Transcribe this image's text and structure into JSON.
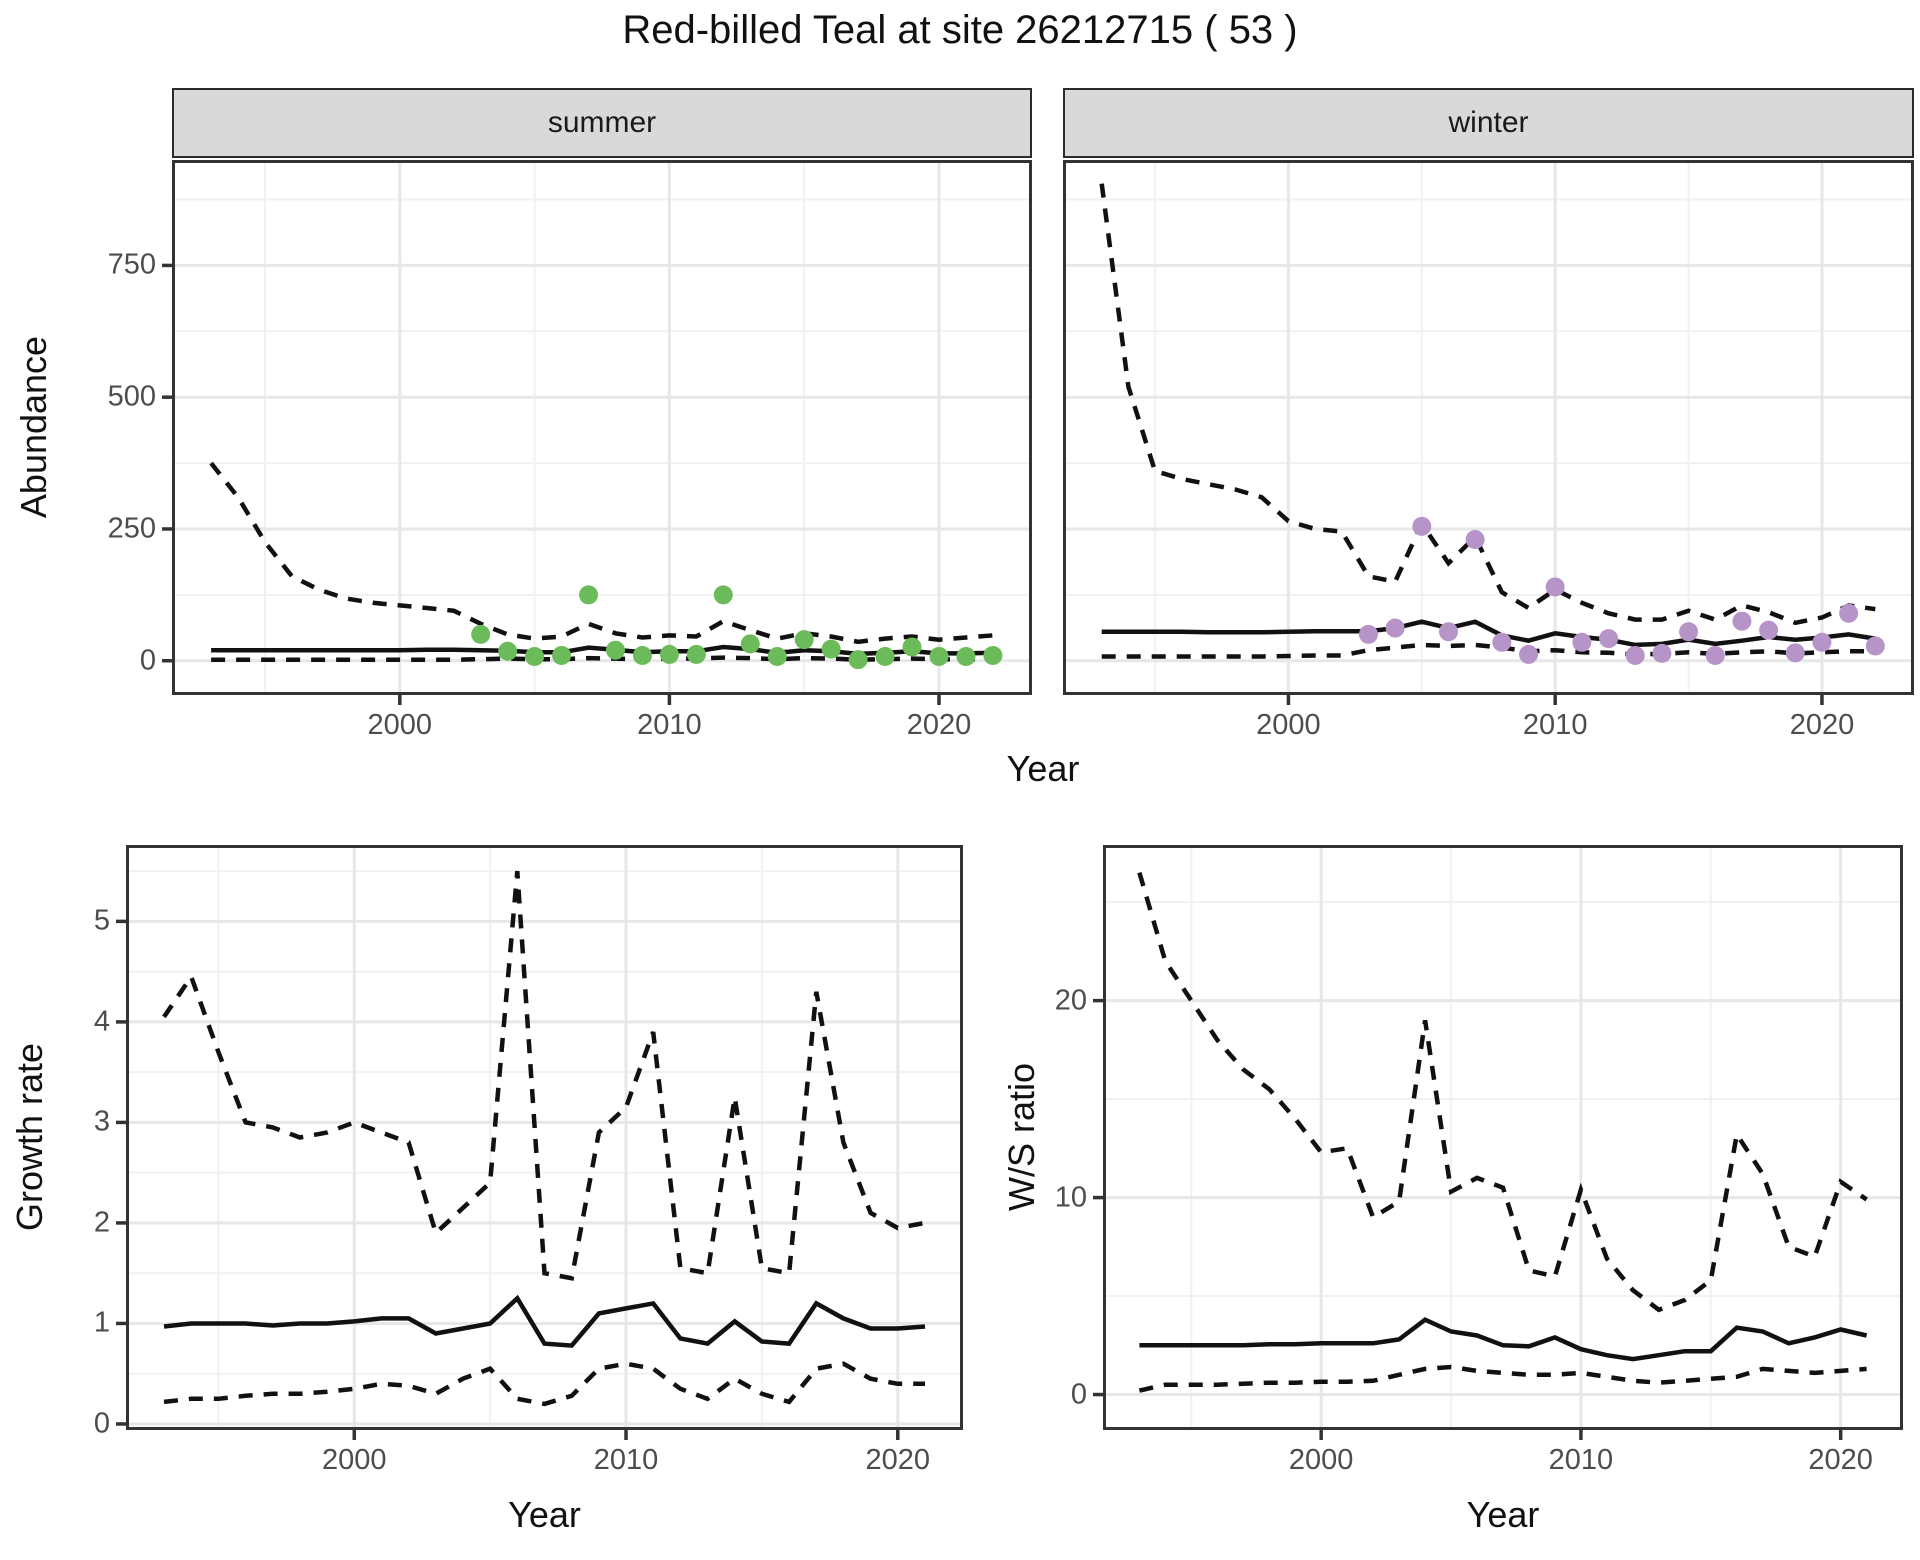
{
  "figure": {
    "title": "Red-billed Teal at site 26212715 ( 53 )"
  },
  "colors": {
    "summer_points": "#6cbb5a",
    "winter_points": "#b794c8",
    "line": "#111111",
    "strip_background": "#d9d9d9",
    "panel_border": "#333333",
    "grid_major": "#e7e7e7",
    "grid_minor": "#f1f1f1",
    "axis_text": "#4d4d4d"
  },
  "chart_data": [
    {
      "id": "summer",
      "type": "line",
      "facet_label": "summer",
      "ylabel": "Abundance",
      "xlabel": "Year",
      "xlim": [
        1991.55,
        2023.45
      ],
      "ylim": [
        -65,
        950
      ],
      "x_ticks": [
        2000,
        2010,
        2020
      ],
      "y_ticks": [
        0,
        250,
        500,
        750
      ],
      "grid": true,
      "legend": "none",
      "series": [
        {
          "name": "upper-ci",
          "style": "dashed",
          "x": [
            1993,
            1994,
            1995,
            1996,
            1997,
            1998,
            1999,
            2000,
            2001,
            2002,
            2003,
            2004,
            2005,
            2006,
            2007,
            2008,
            2009,
            2010,
            2011,
            2012,
            2013,
            2014,
            2015,
            2016,
            2017,
            2018,
            2019,
            2020,
            2021,
            2022
          ],
          "values": [
            375,
            310,
            225,
            160,
            135,
            118,
            110,
            105,
            100,
            95,
            70,
            50,
            42,
            46,
            70,
            52,
            44,
            48,
            46,
            75,
            58,
            42,
            52,
            46,
            36,
            42,
            46,
            40,
            44,
            48
          ]
        },
        {
          "name": "median",
          "style": "solid",
          "x": [
            1993,
            1994,
            1995,
            1996,
            1997,
            1998,
            1999,
            2000,
            2001,
            2002,
            2003,
            2004,
            2005,
            2006,
            2007,
            2008,
            2009,
            2010,
            2011,
            2012,
            2013,
            2014,
            2015,
            2016,
            2017,
            2018,
            2019,
            2020,
            2021,
            2022
          ],
          "values": [
            20,
            20,
            20,
            20,
            20,
            20,
            20,
            20,
            21,
            21,
            20,
            19,
            16,
            16,
            25,
            21,
            16,
            18,
            18,
            26,
            22,
            15,
            20,
            18,
            13,
            15,
            18,
            14,
            14,
            15
          ]
        },
        {
          "name": "lower-ci",
          "style": "dashed",
          "x": [
            1993,
            1994,
            1995,
            1996,
            1997,
            1998,
            1999,
            2000,
            2001,
            2002,
            2003,
            2004,
            2005,
            2006,
            2007,
            2008,
            2009,
            2010,
            2011,
            2012,
            2013,
            2014,
            2015,
            2016,
            2017,
            2018,
            2019,
            2020,
            2021,
            2022
          ],
          "values": [
            2,
            2,
            2,
            2,
            2,
            2,
            2,
            2,
            2,
            2,
            3,
            4,
            3,
            3,
            5,
            4,
            3,
            4,
            4,
            6,
            5,
            3,
            5,
            4,
            2,
            3,
            4,
            3,
            3,
            3
          ]
        },
        {
          "name": "observed-counts",
          "style": "points",
          "color": "#6cbb5a",
          "x": [
            2003,
            2004,
            2005,
            2006,
            2007,
            2008,
            2009,
            2010,
            2011,
            2012,
            2013,
            2014,
            2015,
            2016,
            2017,
            2018,
            2019,
            2020,
            2021,
            2022
          ],
          "values": [
            50,
            18,
            8,
            10,
            125,
            20,
            10,
            12,
            12,
            125,
            32,
            8,
            40,
            22,
            2,
            8,
            26,
            8,
            8,
            10
          ]
        }
      ]
    },
    {
      "id": "winter",
      "type": "line",
      "facet_label": "winter",
      "ylabel": "Abundance",
      "xlabel": "Year",
      "xlim": [
        1991.55,
        2023.45
      ],
      "ylim": [
        -65,
        950
      ],
      "x_ticks": [
        2000,
        2010,
        2020
      ],
      "y_ticks": [
        0,
        250,
        500,
        750
      ],
      "y_tick_labels_shown": false,
      "grid": true,
      "legend": "none",
      "series": [
        {
          "name": "upper-ci",
          "style": "dashed",
          "x": [
            1993,
            1994,
            1995,
            1996,
            1997,
            1998,
            1999,
            2000,
            2001,
            2002,
            2003,
            2004,
            2005,
            2006,
            2007,
            2008,
            2009,
            2010,
            2011,
            2012,
            2013,
            2014,
            2015,
            2016,
            2017,
            2018,
            2019,
            2020,
            2021,
            2022
          ],
          "values": [
            905,
            520,
            360,
            345,
            335,
            325,
            310,
            265,
            250,
            245,
            160,
            150,
            260,
            185,
            235,
            130,
            100,
            135,
            110,
            90,
            78,
            78,
            95,
            78,
            105,
            92,
            72,
            82,
            105,
            98
          ]
        },
        {
          "name": "median",
          "style": "solid",
          "x": [
            1993,
            1994,
            1995,
            1996,
            1997,
            1998,
            1999,
            2000,
            2001,
            2002,
            2003,
            2004,
            2005,
            2006,
            2007,
            2008,
            2009,
            2010,
            2011,
            2012,
            2013,
            2014,
            2015,
            2016,
            2017,
            2018,
            2019,
            2020,
            2021,
            2022
          ],
          "values": [
            55,
            55,
            55,
            55,
            54,
            54,
            54,
            55,
            56,
            56,
            56,
            62,
            74,
            62,
            74,
            48,
            38,
            52,
            45,
            40,
            30,
            32,
            40,
            32,
            38,
            45,
            40,
            44,
            50,
            42
          ]
        },
        {
          "name": "lower-ci",
          "style": "dashed",
          "x": [
            1993,
            1994,
            1995,
            1996,
            1997,
            1998,
            1999,
            2000,
            2001,
            2002,
            2003,
            2004,
            2005,
            2006,
            2007,
            2008,
            2009,
            2010,
            2011,
            2012,
            2013,
            2014,
            2015,
            2016,
            2017,
            2018,
            2019,
            2020,
            2021,
            2022
          ],
          "values": [
            8,
            8,
            8,
            8,
            8,
            8,
            8,
            9,
            10,
            10,
            20,
            25,
            30,
            28,
            30,
            25,
            18,
            20,
            16,
            15,
            12,
            13,
            16,
            13,
            16,
            18,
            14,
            16,
            18,
            18
          ]
        },
        {
          "name": "observed-counts",
          "style": "points",
          "color": "#b794c8",
          "x": [
            2003,
            2004,
            2005,
            2006,
            2007,
            2008,
            2009,
            2010,
            2011,
            2012,
            2013,
            2014,
            2015,
            2016,
            2017,
            2018,
            2019,
            2020,
            2021,
            2022
          ],
          "values": [
            50,
            62,
            255,
            55,
            230,
            35,
            12,
            140,
            35,
            42,
            10,
            14,
            55,
            10,
            75,
            58,
            15,
            35,
            90,
            28
          ]
        }
      ]
    },
    {
      "id": "growth",
      "type": "line",
      "facet_label": "",
      "ylabel": "Growth rate",
      "xlabel": "Year",
      "xlim": [
        1991.6,
        2022.4
      ],
      "ylim": [
        -0.06,
        5.76
      ],
      "x_ticks": [
        2000,
        2010,
        2020
      ],
      "y_ticks": [
        0,
        1,
        2,
        3,
        4,
        5
      ],
      "grid": true,
      "legend": "none",
      "series": [
        {
          "name": "upper-ci",
          "style": "dashed",
          "x": [
            1993,
            1994,
            1995,
            1996,
            1997,
            1998,
            1999,
            2000,
            2001,
            2002,
            2003,
            2004,
            2005,
            2006,
            2007,
            2008,
            2009,
            2010,
            2011,
            2012,
            2013,
            2014,
            2015,
            2016,
            2017,
            2018,
            2019,
            2020,
            2021
          ],
          "values": [
            4.05,
            4.45,
            3.7,
            3.0,
            2.95,
            2.85,
            2.9,
            3.0,
            2.9,
            2.8,
            1.9,
            2.15,
            2.4,
            5.5,
            1.5,
            1.45,
            2.9,
            3.15,
            3.9,
            1.55,
            1.5,
            3.25,
            1.55,
            1.5,
            4.3,
            2.8,
            2.1,
            1.95,
            2.0
          ]
        },
        {
          "name": "median",
          "style": "solid",
          "x": [
            1993,
            1994,
            1995,
            1996,
            1997,
            1998,
            1999,
            2000,
            2001,
            2002,
            2003,
            2004,
            2005,
            2006,
            2007,
            2008,
            2009,
            2010,
            2011,
            2012,
            2013,
            2014,
            2015,
            2016,
            2017,
            2018,
            2019,
            2020,
            2021
          ],
          "values": [
            0.97,
            1.0,
            1.0,
            1.0,
            0.98,
            1.0,
            1.0,
            1.02,
            1.05,
            1.05,
            0.9,
            0.95,
            1.0,
            1.25,
            0.8,
            0.78,
            1.1,
            1.15,
            1.2,
            0.85,
            0.8,
            1.02,
            0.82,
            0.8,
            1.2,
            1.05,
            0.95,
            0.95,
            0.97
          ]
        },
        {
          "name": "lower-ci",
          "style": "dashed",
          "x": [
            1993,
            1994,
            1995,
            1996,
            1997,
            1998,
            1999,
            2000,
            2001,
            2002,
            2003,
            2004,
            2005,
            2006,
            2007,
            2008,
            2009,
            2010,
            2011,
            2012,
            2013,
            2014,
            2015,
            2016,
            2017,
            2018,
            2019,
            2020,
            2021
          ],
          "values": [
            0.22,
            0.25,
            0.25,
            0.28,
            0.3,
            0.3,
            0.32,
            0.35,
            0.4,
            0.38,
            0.3,
            0.45,
            0.55,
            0.25,
            0.2,
            0.28,
            0.55,
            0.6,
            0.55,
            0.35,
            0.25,
            0.45,
            0.3,
            0.22,
            0.55,
            0.6,
            0.45,
            0.4,
            0.4
          ]
        }
      ]
    },
    {
      "id": "wsratio",
      "type": "line",
      "facet_label": "",
      "ylabel": "W/S ratio",
      "xlabel": "Year",
      "xlim": [
        1991.6,
        2022.4
      ],
      "ylim": [
        -1.8,
        27.9
      ],
      "x_ticks": [
        2000,
        2010,
        2020
      ],
      "y_ticks": [
        0,
        10,
        20
      ],
      "grid": true,
      "legend": "none",
      "series": [
        {
          "name": "upper-ci",
          "style": "dashed",
          "x": [
            1993,
            1994,
            1995,
            1996,
            1997,
            1998,
            1999,
            2000,
            2001,
            2002,
            2003,
            2004,
            2005,
            2006,
            2007,
            2008,
            2009,
            2010,
            2011,
            2012,
            2013,
            2014,
            2015,
            2016,
            2017,
            2018,
            2019,
            2020,
            2021
          ],
          "values": [
            26.5,
            22,
            20,
            18,
            16.5,
            15.5,
            14,
            12.3,
            12.5,
            9,
            9.8,
            19,
            10.3,
            11,
            10.5,
            6.3,
            6,
            10.4,
            6.9,
            5.3,
            4.3,
            4.8,
            5.8,
            13.2,
            11.2,
            7.5,
            7,
            10.8,
            9.9
          ]
        },
        {
          "name": "median",
          "style": "solid",
          "x": [
            1993,
            1994,
            1995,
            1996,
            1997,
            1998,
            1999,
            2000,
            2001,
            2002,
            2003,
            2004,
            2005,
            2006,
            2007,
            2008,
            2009,
            2010,
            2011,
            2012,
            2013,
            2014,
            2015,
            2016,
            2017,
            2018,
            2019,
            2020,
            2021
          ],
          "values": [
            2.5,
            2.5,
            2.5,
            2.5,
            2.5,
            2.55,
            2.55,
            2.6,
            2.6,
            2.6,
            2.8,
            3.8,
            3.2,
            3.0,
            2.5,
            2.45,
            2.9,
            2.3,
            2.0,
            1.8,
            2.0,
            2.2,
            2.2,
            3.4,
            3.2,
            2.6,
            2.9,
            3.3,
            3.0
          ]
        },
        {
          "name": "lower-ci",
          "style": "dashed",
          "x": [
            1993,
            1994,
            1995,
            1996,
            1997,
            1998,
            1999,
            2000,
            2001,
            2002,
            2003,
            2004,
            2005,
            2006,
            2007,
            2008,
            2009,
            2010,
            2011,
            2012,
            2013,
            2014,
            2015,
            2016,
            2017,
            2018,
            2019,
            2020,
            2021
          ],
          "values": [
            0.2,
            0.5,
            0.5,
            0.5,
            0.55,
            0.6,
            0.6,
            0.65,
            0.65,
            0.7,
            1.0,
            1.3,
            1.4,
            1.2,
            1.1,
            1.0,
            1.0,
            1.1,
            0.9,
            0.7,
            0.6,
            0.7,
            0.8,
            0.9,
            1.3,
            1.2,
            1.1,
            1.2,
            1.3
          ]
        }
      ]
    }
  ]
}
